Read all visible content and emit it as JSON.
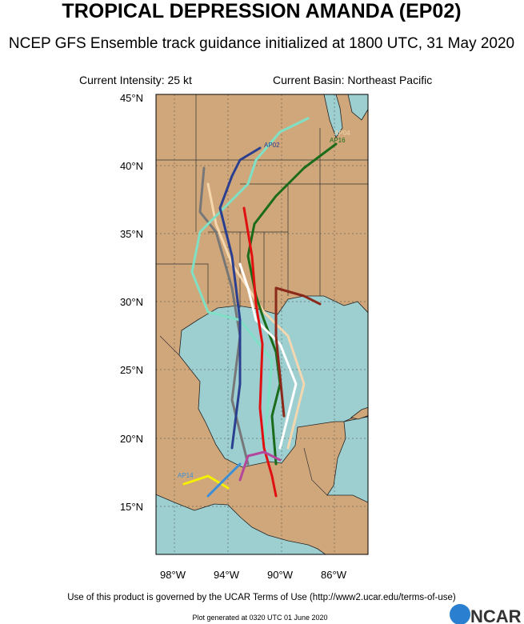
{
  "header": {
    "title": "TROPICAL DEPRESSION AMANDA (EP02)",
    "subtitle": "NCEP GFS Ensemble track guidance initialized at 1800 UTC, 31 May 2020"
  },
  "info": {
    "intensity": "Current Intensity: 25 kt",
    "basin": "Current Basin: Northeast Pacific"
  },
  "map": {
    "lat_labels": [
      "45°N",
      "40°N",
      "35°N",
      "30°N",
      "25°N",
      "20°N",
      "15°N"
    ],
    "lon_labels": [
      "98°W",
      "94°W",
      "90°W",
      "86°W"
    ],
    "track_labels": [
      "AP02",
      "AP04",
      "AP16",
      "AP14"
    ]
  },
  "footer": {
    "terms": "Use of this product is governed by the UCAR Terms of Use (http://www2.ucar.edu/terms-of-use)",
    "generated": "Plot generated at 0320 UTC   01 June 2020",
    "logo": "NCAR"
  }
}
